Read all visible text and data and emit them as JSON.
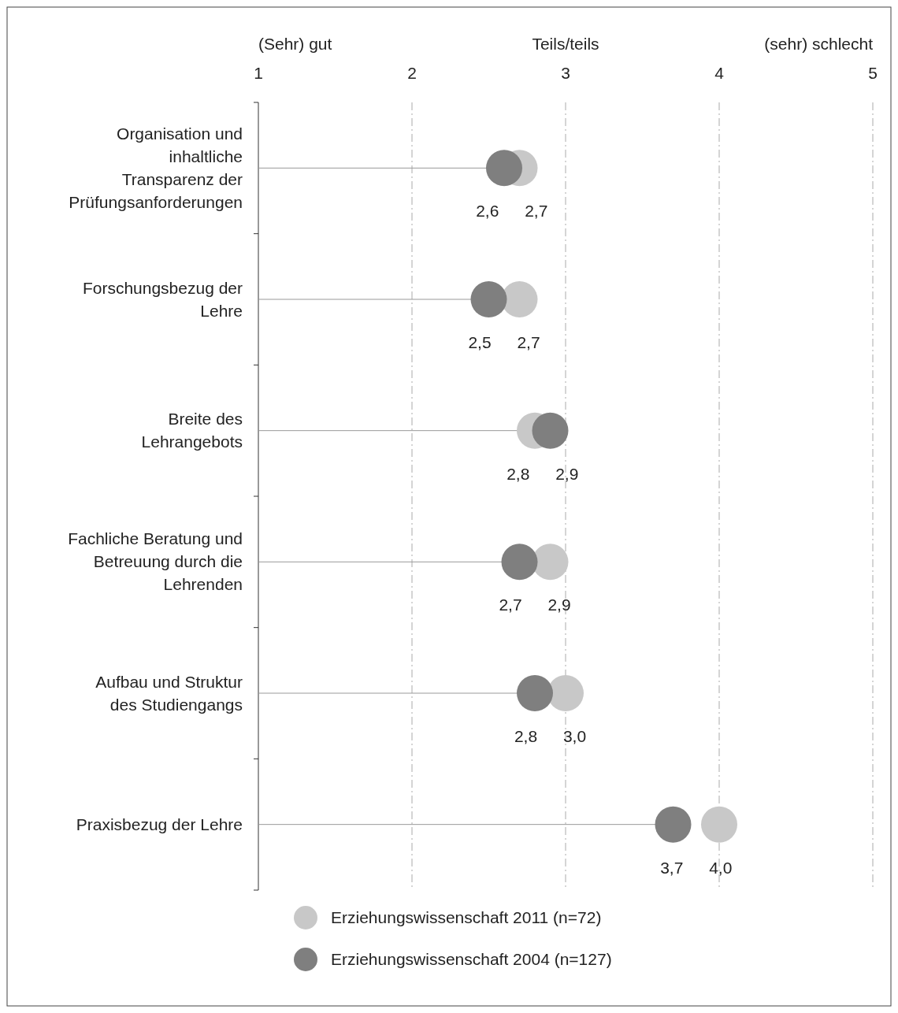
{
  "chart_data": {
    "type": "scatter",
    "orientation": "horizontal",
    "categories": [
      "Organisation und inhaltliche Transparenz der Prüfungsanforderungen",
      "Forschungsbezug der Lehre",
      "Breite des Lehrangebots",
      "Fachliche Beratung und Betreuung durch die Lehrenden",
      "Aufbau und Struktur des Studiengangs",
      "Praxisbezug der Lehre"
    ],
    "series": [
      {
        "name": "Erziehungswissenschaft 2011 (n=72)",
        "color": "#c8c8c8",
        "values": [
          2.7,
          2.7,
          2.8,
          2.9,
          3.0,
          4.0
        ],
        "value_labels": [
          "2,7",
          "2,7",
          "2,8",
          "2,9",
          "3,0",
          "4,0"
        ]
      },
      {
        "name": "Erziehungswissenschaft 2004 (n=127)",
        "type": "lollipop",
        "color": "#7f7f7f",
        "values": [
          2.6,
          2.5,
          2.9,
          2.7,
          2.8,
          3.7
        ],
        "value_labels": [
          "2,6",
          "2,5",
          "2,9",
          "2,7",
          "2,8",
          "3,7"
        ]
      }
    ],
    "xlim": [
      1,
      5
    ],
    "xticks": [
      1,
      2,
      3,
      4,
      5
    ],
    "grid": "x",
    "legend": "bottom",
    "marker": "circle",
    "annotations": [
      "(Sehr) gut",
      "Teils/teils",
      "(sehr) schlecht"
    ]
  }
}
